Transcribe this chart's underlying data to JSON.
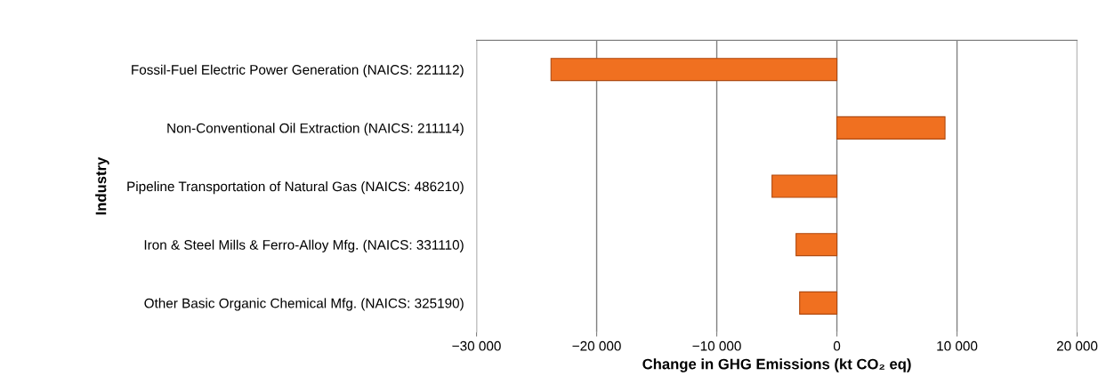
{
  "chart_data": {
    "type": "bar",
    "orientation": "horizontal",
    "categories": [
      "Fossil-Fuel Electric Power Generation (NAICS: 221112)",
      "Non-Conventional Oil Extraction (NAICS: 211114)",
      "Pipeline Transportation of Natural Gas (NAICS: 486210)",
      "Iron & Steel Mills & Ferro-Alloy Mfg. (NAICS: 331110)",
      "Other Basic Organic Chemical Mfg. (NAICS: 325190)"
    ],
    "values": [
      -23800,
      9000,
      -5400,
      -3400,
      -3100
    ],
    "color": "#f07020",
    "xlim": [
      -30000,
      20000
    ],
    "xticks": [
      {
        "value": -30000,
        "label": "−30 000"
      },
      {
        "value": -20000,
        "label": "−20 000"
      },
      {
        "value": -10000,
        "label": "−10 000"
      },
      0,
      {
        "value": 10000,
        "label": "10 000"
      },
      {
        "value": 20000,
        "label": "20 000"
      }
    ],
    "xlabel": "Change in GHG Emissions (kt CO₂ eq)",
    "ylabel": "Industry",
    "grid": "x"
  }
}
